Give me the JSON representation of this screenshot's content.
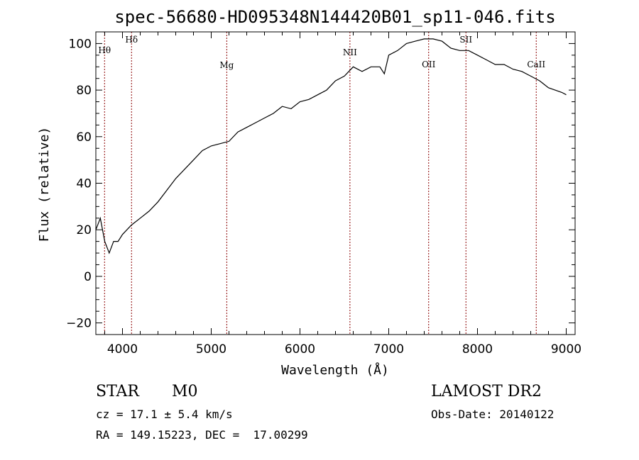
{
  "chart_data": {
    "type": "line",
    "title": "spec-56680-HD095348N144420B01_sp11-046.fits",
    "xlabel": "Wavelength (Å)",
    "ylabel": "Flux (relative)",
    "xlim": [
      3700,
      9100
    ],
    "ylim": [
      -25,
      105
    ],
    "xticks": [
      4000,
      5000,
      6000,
      7000,
      8000,
      9000
    ],
    "yticks": [
      -20,
      0,
      20,
      40,
      60,
      80,
      100
    ],
    "line_color": "#000000",
    "marker_color": "#8b0000",
    "grid": false,
    "spectral_lines": [
      {
        "label": "Hθ",
        "x": 3798
      },
      {
        "label": "Hδ",
        "x": 4102
      },
      {
        "label": "Mg",
        "x": 5175
      },
      {
        "label": "NII",
        "x": 6563
      },
      {
        "label": "OII",
        "x": 7450
      },
      {
        "label": "SII",
        "x": 7870
      },
      {
        "label": "CaII",
        "x": 8662
      }
    ],
    "series": [
      {
        "x": [
          3700,
          3750,
          3800,
          3850,
          3900,
          3950,
          4000,
          4100,
          4200,
          4300,
          4400,
          4500,
          4600,
          4700,
          4800,
          4900,
          5000,
          5100,
          5200,
          5300,
          5400,
          5500,
          5600,
          5700,
          5800,
          5900,
          6000,
          6100,
          6200,
          6300,
          6400,
          6500,
          6600,
          6700,
          6800,
          6900,
          6950,
          7000,
          7100,
          7200,
          7300,
          7400,
          7500,
          7600,
          7700,
          7800,
          7900,
          8000,
          8100,
          8200,
          8300,
          8400,
          8500,
          8600,
          8700,
          8800,
          8950,
          9000
        ],
        "y": [
          20,
          25,
          15,
          10,
          15,
          15,
          18,
          22,
          25,
          28,
          32,
          37,
          42,
          46,
          50,
          54,
          56,
          57,
          58,
          62,
          64,
          66,
          68,
          70,
          73,
          72,
          75,
          76,
          78,
          80,
          84,
          86,
          90,
          88,
          90,
          90,
          87,
          95,
          97,
          100,
          101,
          102,
          102,
          101,
          98,
          97,
          97,
          95,
          93,
          91,
          91,
          89,
          88,
          86,
          84,
          81,
          79,
          78
        ]
      }
    ]
  },
  "footer": {
    "object_type": "STAR",
    "subclass": "M0",
    "survey": "LAMOST DR2",
    "cz": "cz = 17.1 ± 5.4 km/s",
    "obs_date": "Obs-Date: 20140122",
    "coords": "RA = 149.15223, DEC =  17.00299"
  }
}
